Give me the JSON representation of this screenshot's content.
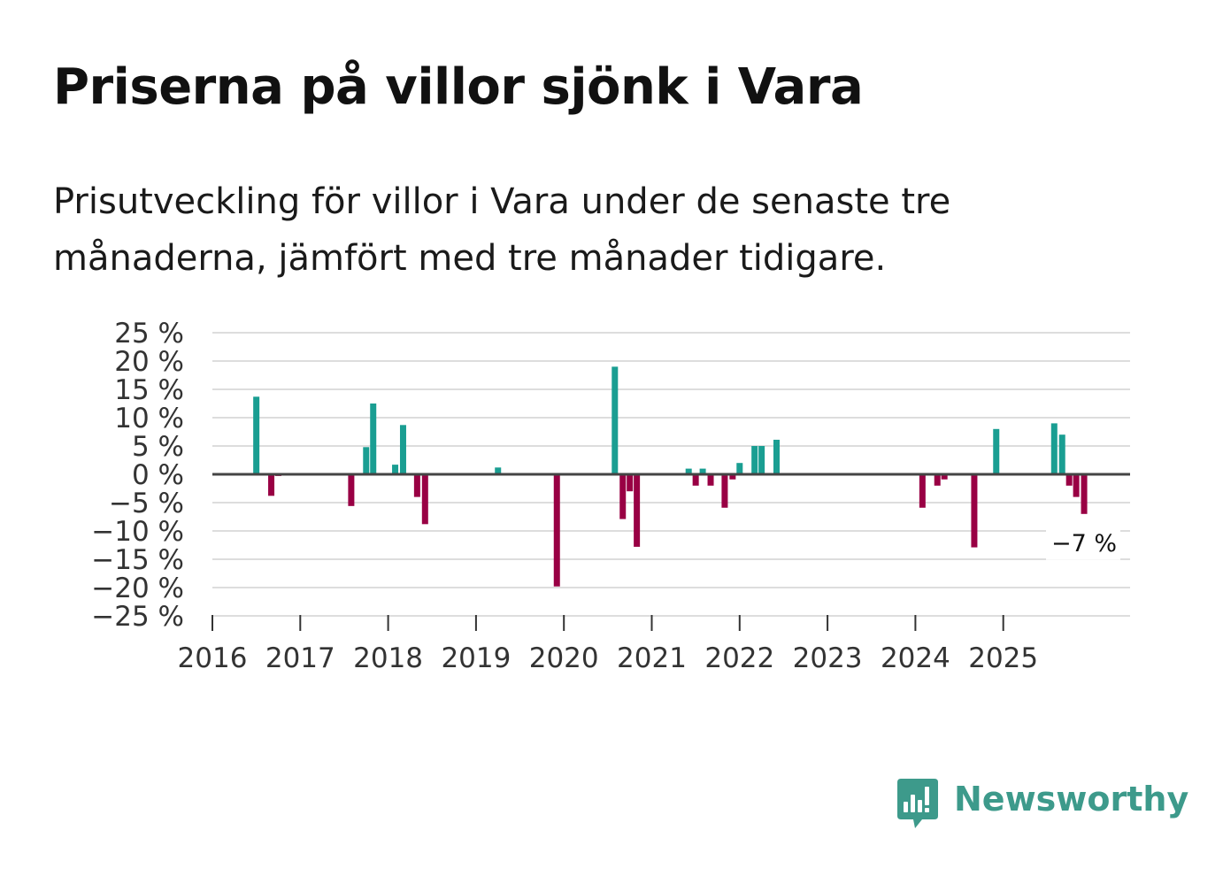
{
  "title": "Priserna på villor sjönk i Vara",
  "subtitle": "Prisutveckling för villor i Vara under de senaste tre månaderna, jämfört med tre månader tidigare.",
  "brand": {
    "name": "Newsworthy",
    "icon": "newsworthy-logo-icon",
    "color": "#3d9a8b"
  },
  "chart_data": {
    "type": "bar",
    "title": "Priserna på villor sjönk i Vara",
    "xlabel": "",
    "ylabel": "",
    "ylim": [
      -25,
      25
    ],
    "y_ticks": [
      25,
      20,
      15,
      10,
      5,
      0,
      -5,
      -10,
      -15,
      -20,
      -25
    ],
    "y_tick_labels": [
      "25 %",
      "20 %",
      "15 %",
      "10 %",
      "5 %",
      "0 %",
      "−5 %",
      "−10 %",
      "−15 %",
      "−20 %",
      "−25 %"
    ],
    "x_ticks": [
      2016,
      2017,
      2018,
      2019,
      2020,
      2021,
      2022,
      2023,
      2024,
      2025
    ],
    "x_tick_labels": [
      "2016",
      "2017",
      "2018",
      "2019",
      "2020",
      "2021",
      "2022",
      "2023",
      "2024",
      "2025"
    ],
    "x_range": [
      2016,
      2026.4
    ],
    "grid": true,
    "colors": {
      "positive": "#1a9e92",
      "negative": "#990044",
      "grid": "#dddddd",
      "zero_line": "#444444"
    },
    "series": [
      {
        "name": "Prisutveckling",
        "points": [
          {
            "x": 2016.5,
            "value": 13.7
          },
          {
            "x": 2016.67,
            "value": -3.8
          },
          {
            "x": 2016.75,
            "value": -0.3
          },
          {
            "x": 2017.58,
            "value": -5.6
          },
          {
            "x": 2017.75,
            "value": 4.8
          },
          {
            "x": 2017.83,
            "value": 12.5
          },
          {
            "x": 2018.08,
            "value": 1.7
          },
          {
            "x": 2018.17,
            "value": 8.7
          },
          {
            "x": 2018.33,
            "value": -4.0
          },
          {
            "x": 2018.42,
            "value": -8.8
          },
          {
            "x": 2019.25,
            "value": 1.2
          },
          {
            "x": 2019.92,
            "value": -19.8
          },
          {
            "x": 2020.58,
            "value": 19.0
          },
          {
            "x": 2020.67,
            "value": -7.9
          },
          {
            "x": 2020.75,
            "value": -3.0
          },
          {
            "x": 2020.83,
            "value": -12.8
          },
          {
            "x": 2021.42,
            "value": 1.0
          },
          {
            "x": 2021.5,
            "value": -2.0
          },
          {
            "x": 2021.58,
            "value": 1.0
          },
          {
            "x": 2021.67,
            "value": -2.0
          },
          {
            "x": 2021.83,
            "value": -5.9
          },
          {
            "x": 2021.92,
            "value": -0.9
          },
          {
            "x": 2022.0,
            "value": 2.0
          },
          {
            "x": 2022.17,
            "value": 5.0
          },
          {
            "x": 2022.25,
            "value": 5.0
          },
          {
            "x": 2022.42,
            "value": 6.1
          },
          {
            "x": 2024.08,
            "value": -5.9
          },
          {
            "x": 2024.25,
            "value": -2.0
          },
          {
            "x": 2024.33,
            "value": -0.9
          },
          {
            "x": 2024.67,
            "value": -12.9
          },
          {
            "x": 2024.92,
            "value": 8.0
          },
          {
            "x": 2025.58,
            "value": 9.0
          },
          {
            "x": 2025.67,
            "value": 7.0
          },
          {
            "x": 2025.75,
            "value": -2.0
          },
          {
            "x": 2025.83,
            "value": -4.0
          },
          {
            "x": 2025.92,
            "value": -7.0
          }
        ]
      }
    ],
    "annotations": [
      {
        "text": "−7 %",
        "target": "last-point"
      }
    ]
  }
}
